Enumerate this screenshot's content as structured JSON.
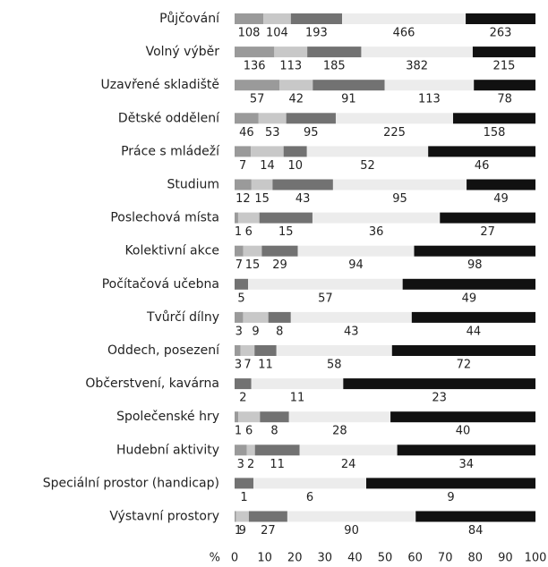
{
  "chart_data": {
    "type": "stacked_bar_100",
    "orientation": "horizontal",
    "categories": [
      "Půjčování",
      "Volný výběr",
      "Uzavřené skladiště",
      "Dětské oddělení",
      "Práce s mládeží",
      "Studium",
      "Poslechová místa",
      "Kolektivní akce",
      "Počítačová učebna",
      "Tvůrčí dílny",
      "Oddech, posezení",
      "Občerstvení, kavárna",
      "Společenské hry",
      "Hudební aktivity",
      "Speciální prostor (handicap)",
      "Výstavní prostory"
    ],
    "series": [
      {
        "color": "#9a9a9a",
        "values": [
          108,
          136,
          57,
          46,
          7,
          12,
          1,
          7,
          null,
          3,
          3,
          null,
          1,
          3,
          null,
          1
        ]
      },
      {
        "color": "#c8c8c8",
        "values": [
          104,
          113,
          42,
          53,
          14,
          15,
          6,
          15,
          null,
          9,
          7,
          null,
          6,
          2,
          null,
          9
        ]
      },
      {
        "color": "#727272",
        "values": [
          193,
          185,
          91,
          95,
          10,
          43,
          15,
          29,
          5,
          8,
          11,
          2,
          8,
          11,
          1,
          27
        ]
      },
      {
        "color": "#ececec",
        "values": [
          466,
          382,
          113,
          225,
          52,
          95,
          36,
          94,
          57,
          43,
          58,
          11,
          28,
          24,
          6,
          90
        ]
      },
      {
        "color": "#111111",
        "values": [
          263,
          215,
          78,
          158,
          46,
          49,
          27,
          98,
          49,
          44,
          72,
          23,
          40,
          34,
          9,
          84
        ]
      }
    ],
    "xlabel": "%",
    "xlim": [
      0,
      100
    ],
    "xticks": [
      0,
      10,
      20,
      30,
      40,
      50,
      60,
      70,
      80,
      90,
      100
    ],
    "grid": false
  }
}
